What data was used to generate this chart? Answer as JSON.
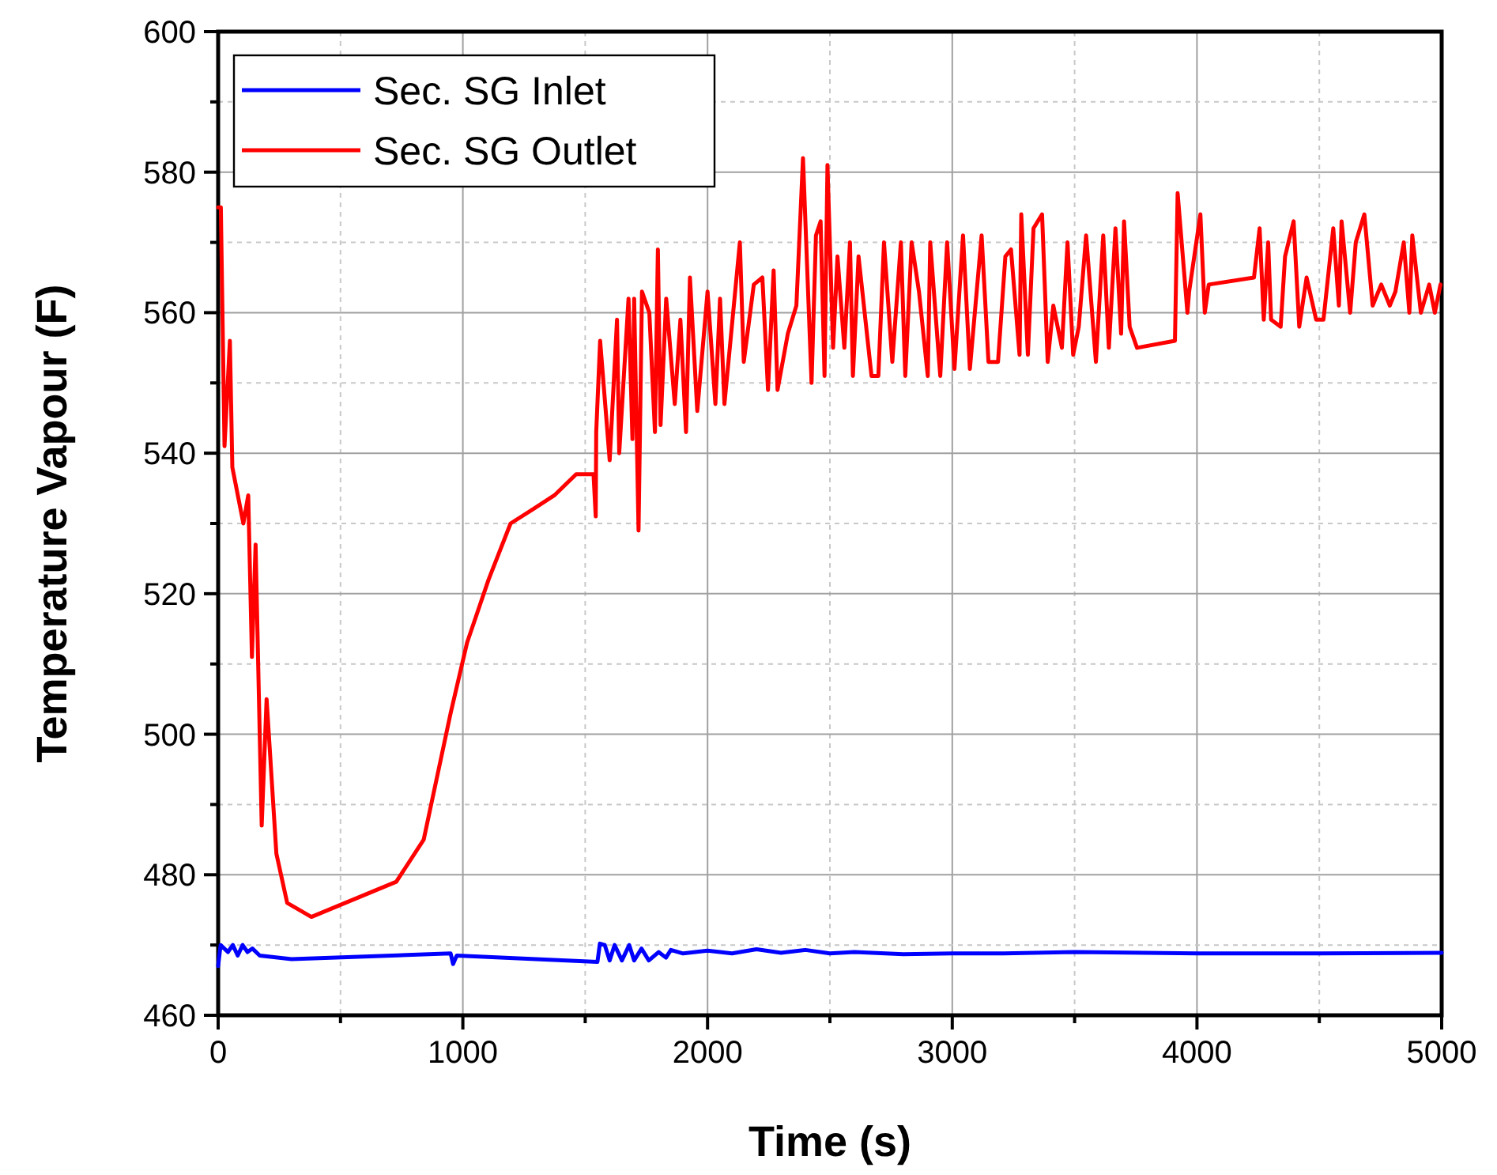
{
  "chart_data": {
    "type": "line",
    "xlabel": "Time (s)",
    "ylabel": "Temperature Vapour (F)",
    "xlim": [
      0,
      5000
    ],
    "ylim": [
      460,
      600
    ],
    "xticks": [
      0,
      {
        "value": 500,
        "label": null
      },
      1000,
      {
        "value": 1500,
        "label": null
      },
      2000,
      {
        "value": 2500,
        "label": null
      },
      3000,
      {
        "value": 3500,
        "label": null
      },
      4000,
      {
        "value": 4500,
        "label": null
      },
      5000
    ],
    "yticks": [
      460,
      {
        "value": 470,
        "label": null
      },
      480,
      {
        "value": 490,
        "label": null
      },
      500,
      {
        "value": 510,
        "label": null
      },
      520,
      {
        "value": 530,
        "label": null
      },
      540,
      {
        "value": 550,
        "label": null
      },
      560,
      {
        "value": 570,
        "label": null
      },
      580,
      {
        "value": 590,
        "label": null
      },
      600
    ],
    "grid": true,
    "legend": "top left",
    "marker": "none",
    "line_style": "solid",
    "series": [
      {
        "name": "Sec. SG Inlet",
        "color": "#0000ff",
        "x": [
          0,
          10,
          40,
          60,
          80,
          100,
          120,
          140,
          170,
          300,
          950,
          960,
          975,
          1550,
          1560,
          1580,
          1600,
          1620,
          1650,
          1680,
          1700,
          1730,
          1760,
          1800,
          1830,
          1850,
          1900,
          2000,
          2100,
          2200,
          2300,
          2400,
          2500,
          2600,
          2800,
          3000,
          3200,
          3500,
          4000,
          4500,
          5000
        ],
        "values": [
          467,
          470,
          469,
          470,
          468.5,
          470,
          469,
          469.5,
          468.5,
          468,
          468.8,
          467.3,
          468.5,
          467.6,
          470.2,
          470,
          467.8,
          470,
          467.8,
          470,
          467.8,
          469.5,
          467.8,
          469,
          468.2,
          469.3,
          468.8,
          469.2,
          468.8,
          469.4,
          468.9,
          469.3,
          468.8,
          469,
          468.7,
          468.8,
          468.8,
          469,
          468.8,
          468.8,
          468.9
        ]
      },
      {
        "name": "Sec. SG Outlet",
        "color": "#ff0000",
        "x": [
          0,
          11,
          26,
          48,
          58,
          103,
          123,
          138,
          153,
          178,
          198,
          238,
          282,
          381,
          728,
          840,
          950,
          1017,
          1105,
          1195,
          1286,
          1374,
          1463,
          1534,
          1543,
          1545,
          1561,
          1600,
          1630,
          1639,
          1677,
          1693,
          1700,
          1718,
          1732,
          1762,
          1785,
          1797,
          1808,
          1831,
          1866,
          1889,
          1912,
          1928,
          1958,
          2000,
          2032,
          2051,
          2069,
          2132,
          2148,
          2189,
          2224,
          2247,
          2270,
          2286,
          2328,
          2363,
          2390,
          2425,
          2443,
          2462,
          2478,
          2490,
          2513,
          2531,
          2559,
          2582,
          2594,
          2617,
          2670,
          2698,
          2721,
          2755,
          2790,
          2808,
          2834,
          2864,
          2900,
          2910,
          2940,
          2951,
          2979,
          3009,
          3044,
          3072,
          3120,
          3148,
          3187,
          3217,
          3240,
          3275,
          3282,
          3309,
          3332,
          3367,
          3390,
          3413,
          3448,
          3471,
          3494,
          3517,
          3547,
          3587,
          3617,
          3640,
          3667,
          3690,
          3702,
          3725,
          3755,
          3910,
          3921,
          3961,
          3968,
          4014,
          4032,
          4048,
          4233,
          4256,
          4273,
          4291,
          4303,
          4342,
          4360,
          4395,
          4418,
          4448,
          4487,
          4517,
          4557,
          4580,
          4591,
          4626,
          4649,
          4684,
          4718,
          4753,
          4788,
          4811,
          4845,
          4868,
          4880,
          4915,
          4949,
          4972,
          4995
        ],
        "values": [
          575,
          575,
          541,
          556,
          538,
          530,
          534,
          511,
          527,
          487,
          505,
          483,
          476,
          474,
          479,
          485,
          503,
          513,
          522,
          530,
          532,
          534,
          537,
          537,
          531,
          543,
          556,
          539,
          559,
          540,
          562,
          542,
          562,
          529,
          563,
          560,
          543,
          569,
          544,
          562,
          547,
          559,
          543,
          565,
          546,
          563,
          547,
          562,
          547,
          570,
          553,
          564,
          565,
          549,
          566,
          549,
          557,
          561,
          582,
          550,
          571,
          573,
          551,
          581,
          555,
          568,
          555,
          570,
          551,
          568,
          551,
          551,
          570,
          553,
          570,
          551,
          570,
          563,
          551,
          570,
          556,
          551,
          570,
          552,
          571,
          552,
          571,
          553,
          553,
          568,
          569,
          554,
          574,
          554,
          572,
          574,
          553,
          561,
          555,
          570,
          554,
          558,
          571,
          553,
          571,
          555,
          572,
          557,
          573,
          558,
          555,
          556,
          577,
          560,
          563,
          574,
          560,
          564,
          565,
          572,
          559,
          570,
          559,
          558,
          568,
          573,
          558,
          565,
          559,
          559,
          572,
          561,
          573,
          560,
          570,
          574,
          561,
          564,
          561,
          563,
          570,
          560,
          571,
          560,
          564,
          560,
          564
        ]
      }
    ]
  }
}
